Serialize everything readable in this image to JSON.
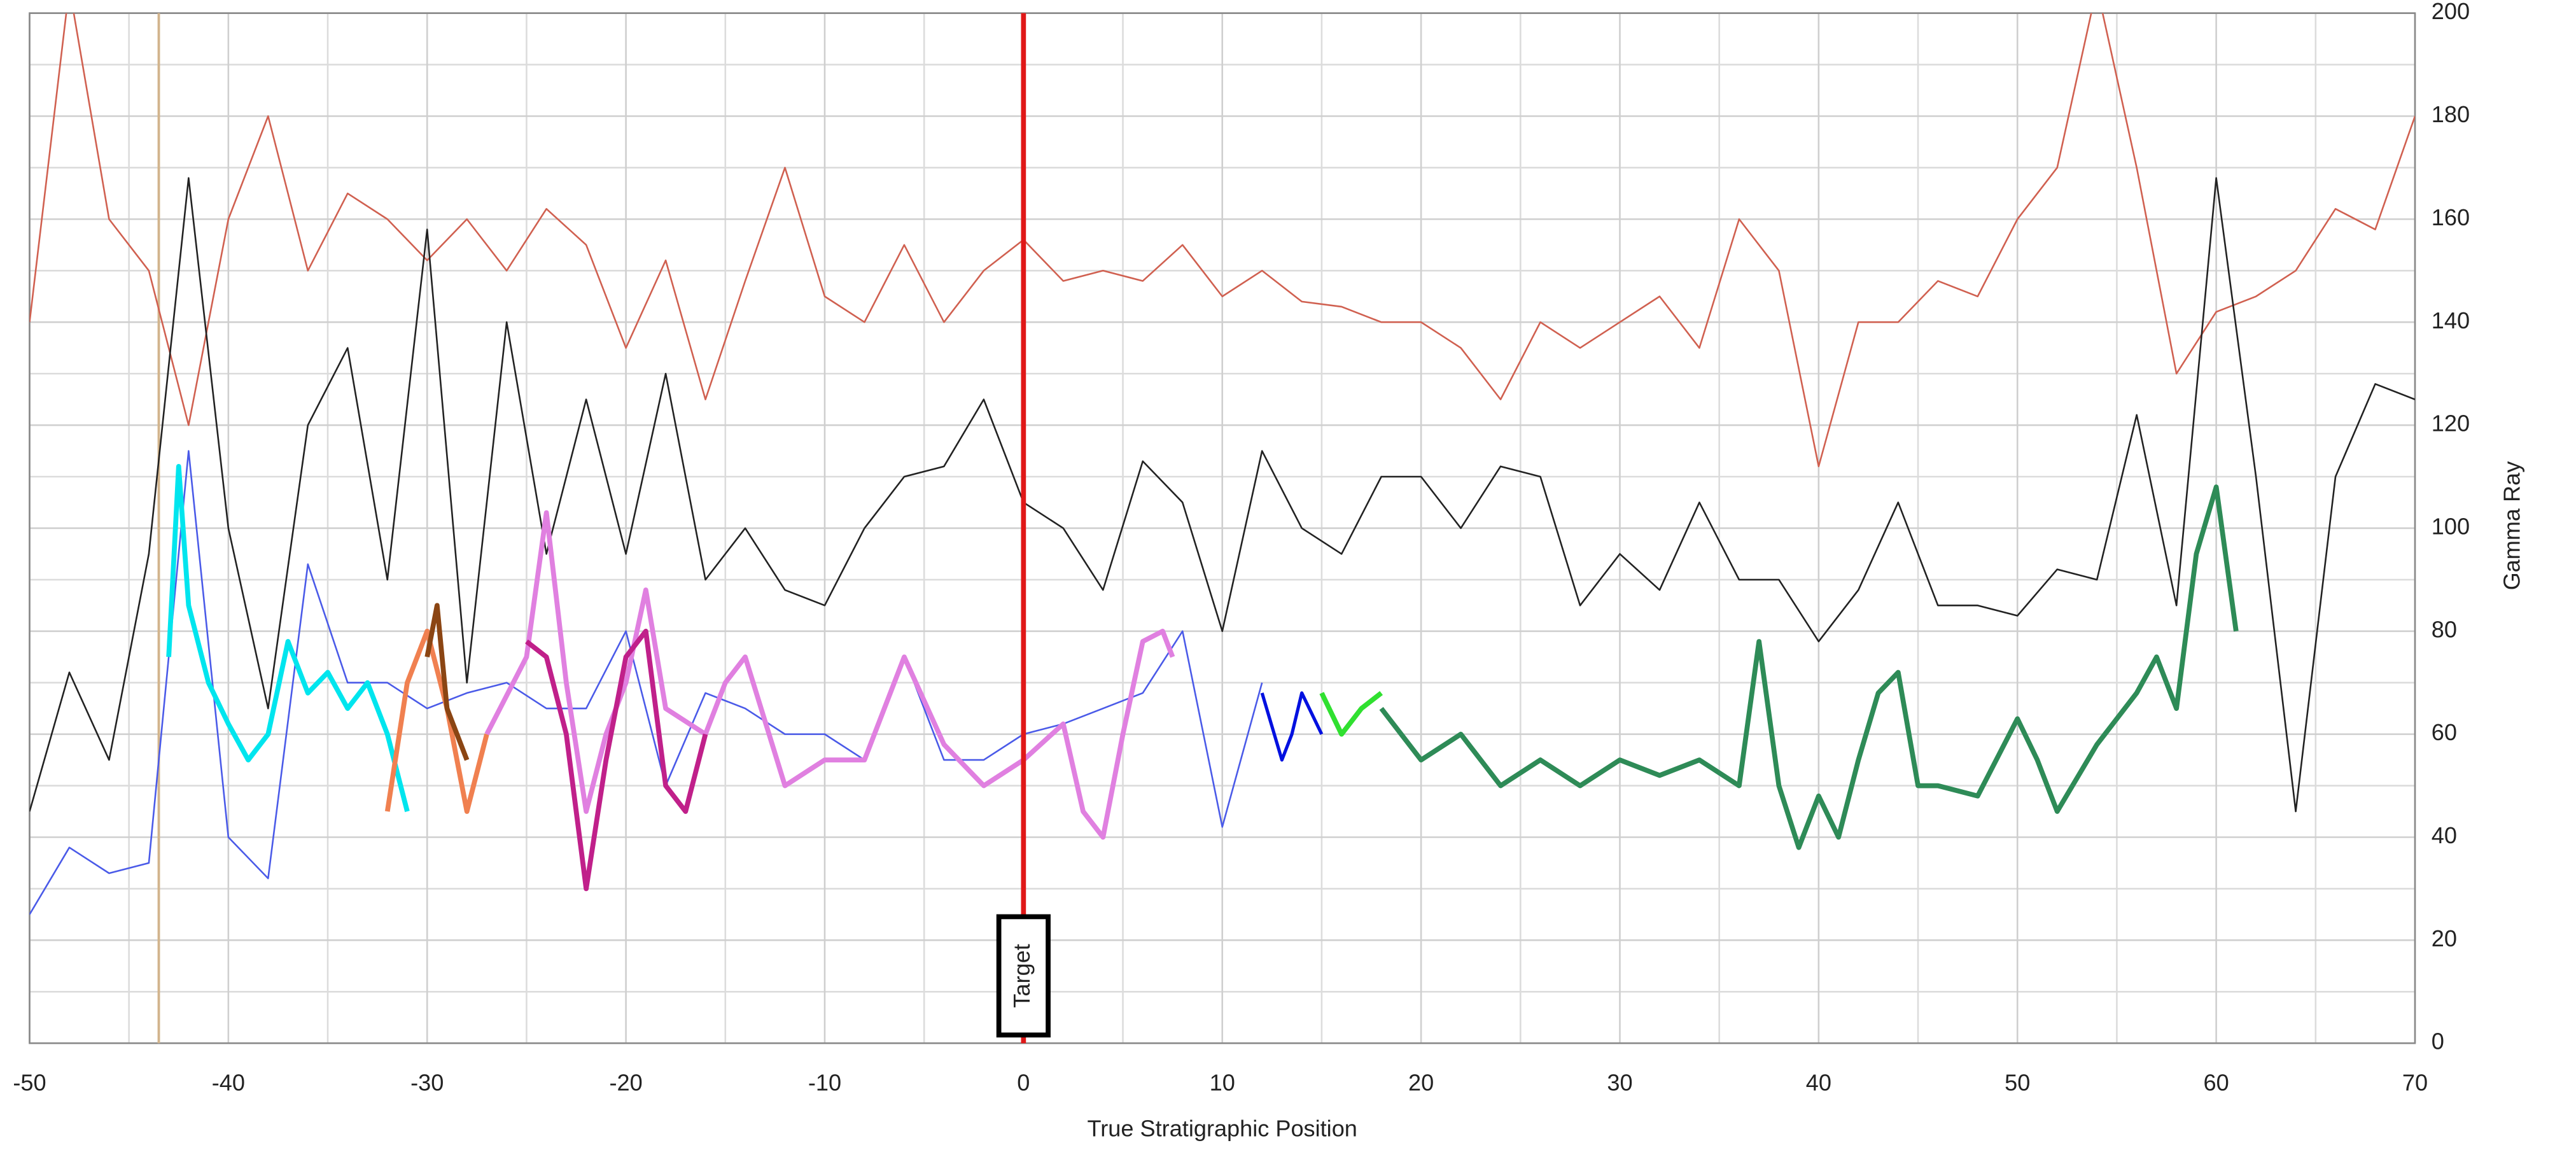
{
  "chart_data": {
    "type": "line",
    "x_label": "True Stratigraphic Position",
    "y_label": "Gamma Ray",
    "xlim": [
      -50,
      70
    ],
    "xticks": [
      -50,
      -40,
      -30,
      -20,
      -10,
      0,
      10,
      20,
      30,
      40,
      50,
      60,
      70
    ],
    "x_minor_ticks": [
      -45,
      -35,
      -25,
      -15,
      -5,
      5,
      15,
      25,
      35,
      45,
      55,
      65
    ],
    "ylim": [
      0,
      200
    ],
    "yticks": [
      0,
      20,
      40,
      60,
      80,
      100,
      120,
      140,
      160,
      180,
      200
    ],
    "y_minor_ticks": [
      10,
      30,
      50,
      70,
      90,
      110,
      130,
      150,
      170,
      190
    ],
    "grid": true,
    "y_axis_side": "right",
    "x": [
      -50,
      -48,
      -46,
      -44,
      -42,
      -40,
      -38,
      -36,
      -34,
      -32,
      -30,
      -28,
      -26,
      -24,
      -22,
      -20,
      -18,
      -16,
      -14,
      -12,
      -10,
      -8,
      -6,
      -4,
      -2,
      0,
      2,
      4,
      6,
      8,
      10,
      12,
      14,
      16,
      18,
      20,
      22,
      24,
      26,
      28,
      30,
      32,
      34,
      36,
      38,
      40,
      42,
      44,
      46,
      48,
      50,
      52,
      54,
      56,
      58,
      60,
      62,
      64,
      66,
      68,
      70
    ],
    "series": [
      {
        "color": "#d06050",
        "width": 1,
        "values": [
          140,
          205,
          160,
          150,
          120,
          160,
          180,
          150,
          165,
          160,
          152,
          160,
          150,
          162,
          155,
          135,
          152,
          125,
          148,
          170,
          145,
          140,
          155,
          140,
          150,
          156,
          148,
          150,
          148,
          155,
          145,
          150,
          144,
          143,
          140,
          140,
          135,
          125,
          140,
          135,
          140,
          145,
          135,
          160,
          150,
          112,
          140,
          140,
          148,
          145,
          160,
          170,
          205,
          170,
          130,
          142,
          145,
          150,
          162,
          158,
          180
        ]
      },
      {
        "color": "#222222",
        "width": 1,
        "values": [
          45,
          72,
          55,
          95,
          168,
          100,
          65,
          120,
          135,
          90,
          158,
          70,
          140,
          95,
          125,
          95,
          130,
          90,
          100,
          88,
          85,
          100,
          110,
          112,
          125,
          105,
          100,
          88,
          113,
          105,
          80,
          115,
          100,
          95,
          110,
          110,
          100,
          112,
          110,
          85,
          95,
          88,
          105,
          90,
          90,
          78,
          88,
          105,
          85,
          85,
          83,
          92,
          90,
          122,
          85,
          168,
          110,
          45,
          110,
          128,
          125
        ]
      },
      {
        "color": "#4a5ae8",
        "width": 1,
        "values": [
          25,
          38,
          33,
          35,
          115,
          40,
          32,
          93,
          70,
          70,
          65,
          68,
          70,
          65,
          65,
          80,
          50,
          68,
          65,
          60,
          60,
          55,
          75,
          55,
          55,
          60,
          62,
          65,
          68,
          80,
          42,
          70,
          null,
          null,
          null,
          null,
          null,
          null,
          null,
          null,
          null,
          null,
          null,
          null,
          null,
          null,
          null,
          null,
          null,
          null,
          null,
          null,
          null,
          null,
          null,
          null,
          null,
          null,
          null,
          null,
          null
        ]
      },
      {
        "color": "#00e5ee",
        "width": 3,
        "x": [
          -43,
          -42.5,
          -42,
          -41,
          -40,
          -39,
          -38,
          -37,
          -36,
          -35,
          -34,
          -33,
          -32,
          -31
        ],
        "values": [
          75,
          112,
          85,
          70,
          62,
          55,
          60,
          78,
          68,
          72,
          65,
          70,
          60,
          45
        ]
      },
      {
        "color": "#f08050",
        "width": 3,
        "x": [
          -32,
          -31,
          -30,
          -29,
          -28,
          -27
        ],
        "values": [
          45,
          70,
          80,
          65,
          45,
          60
        ]
      },
      {
        "color": "#8b4513",
        "width": 3,
        "x": [
          -30,
          -29.5,
          -29,
          -28
        ],
        "values": [
          75,
          85,
          65,
          55
        ]
      },
      {
        "color": "#e080e0",
        "width": 3,
        "x": [
          -27,
          -25,
          -24,
          -23,
          -22,
          -21,
          -20,
          -19,
          -18,
          -16,
          -15,
          -14,
          -12,
          -10,
          -8,
          -6,
          -4,
          -2,
          0,
          2,
          3,
          4,
          5,
          6,
          7,
          7.5
        ],
        "values": [
          60,
          75,
          103,
          70,
          45,
          60,
          70,
          88,
          65,
          60,
          70,
          75,
          50,
          55,
          55,
          75,
          58,
          50,
          55,
          62,
          45,
          40,
          60,
          78,
          80,
          75
        ]
      },
      {
        "color": "#c0208a",
        "width": 3,
        "x": [
          -25,
          -24,
          -23,
          -22,
          -21,
          -20,
          -19,
          -18,
          -17,
          -16
        ],
        "values": [
          78,
          75,
          60,
          30,
          55,
          75,
          80,
          50,
          45,
          60
        ]
      },
      {
        "color": "#0010e0",
        "width": 2,
        "x": [
          12,
          13,
          13.5,
          14,
          15
        ],
        "values": [
          68,
          55,
          60,
          68,
          60
        ]
      },
      {
        "color": "#30e030",
        "width": 3,
        "x": [
          15,
          16,
          17,
          18
        ],
        "values": [
          68,
          60,
          65,
          68
        ]
      },
      {
        "color": "#2e8b57",
        "width": 3,
        "x": [
          18,
          20,
          22,
          24,
          26,
          28,
          30,
          32,
          34,
          36,
          37,
          38,
          39,
          40,
          41,
          42,
          43,
          44,
          45,
          46,
          48,
          50,
          51,
          52,
          54,
          56,
          57,
          58,
          59,
          60,
          61
        ],
        "values": [
          65,
          55,
          60,
          50,
          55,
          50,
          55,
          52,
          55,
          50,
          78,
          50,
          38,
          48,
          40,
          55,
          68,
          72,
          50,
          50,
          48,
          63,
          55,
          45,
          58,
          68,
          75,
          65,
          95,
          108,
          80
        ]
      }
    ],
    "annotations": [
      {
        "text": "Target",
        "x": 0,
        "color": "#e01818"
      }
    ],
    "reference_lines": [
      {
        "x": -43.5,
        "color": "#d2b48c"
      }
    ]
  }
}
